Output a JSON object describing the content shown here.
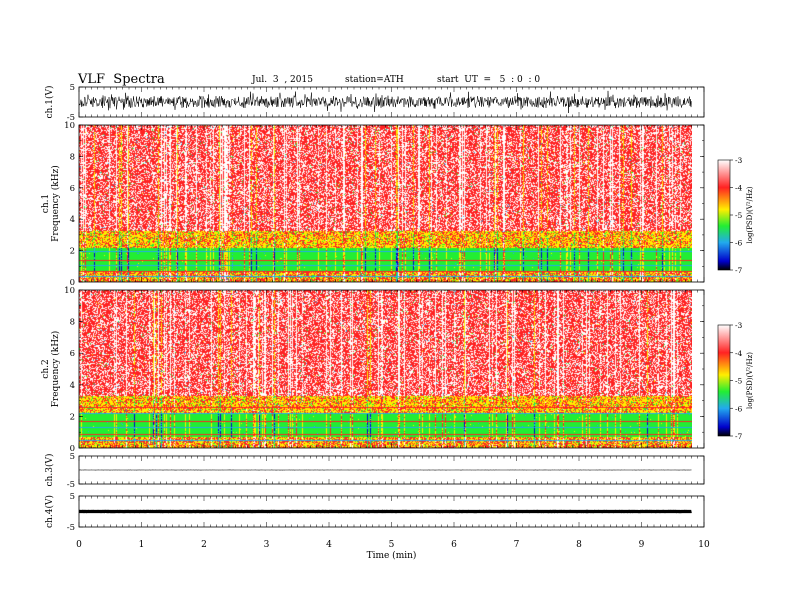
{
  "header": {
    "title": "VLF  Spectra",
    "date": "Jul.  3  , 2015",
    "station": "station=ATH",
    "start": "start  UT  =   5  : 0  : 0"
  },
  "chart_data": {
    "type": "heatmap",
    "xlabel": "Time  (min)",
    "xlim": [
      0,
      10
    ],
    "x_ticks": [
      "0",
      "1",
      "2",
      "3",
      "4",
      "5",
      "6",
      "7",
      "8",
      "9",
      "10"
    ],
    "data_end_min": 9.8,
    "panels": [
      {
        "id": "ch1-waveform",
        "type": "line",
        "ylabel": "ch.1(V)",
        "ylim": [
          -5,
          5
        ],
        "y_ticks": [
          "5",
          "-5"
        ],
        "trace": "noisy waveform, amplitude about ±3 V"
      },
      {
        "id": "ch1-spectrogram",
        "type": "heatmap",
        "ylabel": "ch.1",
        "ylabel2": "Frequency  (kHz)",
        "ylim": [
          0,
          10
        ],
        "y_ticks": [
          "0",
          "2",
          "4",
          "6",
          "8",
          "10"
        ],
        "colorbar": {
          "label": "log(PSD)(V²/Hz)",
          "range": [
            -7,
            -3
          ],
          "ticks": [
            "-3",
            "-4",
            "-5",
            "-6",
            "-7"
          ]
        }
      },
      {
        "id": "ch2-spectrogram",
        "type": "heatmap",
        "ylabel": "ch.2",
        "ylabel2": "Frequency  (kHz)",
        "ylim": [
          0,
          10
        ],
        "y_ticks": [
          "0",
          "2",
          "4",
          "6",
          "8",
          "10"
        ],
        "colorbar": {
          "label": "log(PSD)(V²/Hz)",
          "range": [
            -7,
            -3
          ],
          "ticks": [
            "-3",
            "-4",
            "-5",
            "-6",
            "-7"
          ]
        }
      },
      {
        "id": "ch3-waveform",
        "type": "line",
        "ylabel": "ch.3(V)",
        "ylim": [
          -5,
          5
        ],
        "y_ticks": [
          "5",
          "-5"
        ],
        "trace": "near-flat trace at about 0 V"
      },
      {
        "id": "ch4-waveform",
        "type": "line",
        "ylabel": "ch.4(V)",
        "ylim": [
          -5,
          5
        ],
        "y_ticks": [
          "5",
          "-5"
        ],
        "trace": "thick flat trace at about 0 V"
      }
    ],
    "grid": false,
    "colors": {
      "high": "#ff2222",
      "mid_high": "#ffee00",
      "mid": "#22ee33",
      "mid_low": "#22aaee",
      "low": "#0000cc",
      "lowest": "#000000",
      "top": "#ffffff"
    }
  }
}
